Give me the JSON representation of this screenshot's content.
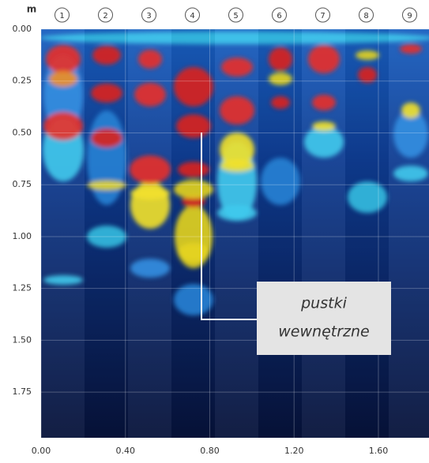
{
  "chart_data": {
    "type": "heatmap",
    "y_unit": "m",
    "categories": [
      "1",
      "2",
      "3",
      "4",
      "5",
      "6",
      "7",
      "8",
      "9"
    ],
    "xlim": [
      0,
      1.84
    ],
    "ylim": [
      0,
      1.97
    ],
    "xticks": [
      {
        "value": 0,
        "label": "0.00"
      },
      {
        "value": 0.4,
        "label": "0.40"
      },
      {
        "value": 0.8,
        "label": "0.80"
      },
      {
        "value": 1.2,
        "label": "1.20"
      },
      {
        "value": 1.6,
        "label": "1.60"
      }
    ],
    "yticks": [
      {
        "value": 0,
        "label": "0.00"
      },
      {
        "value": 0.25,
        "label": "0.25"
      },
      {
        "value": 0.5,
        "label": "0.50"
      },
      {
        "value": 0.75,
        "label": "0.75"
      },
      {
        "value": 1,
        "label": "1.00"
      },
      {
        "value": 1.25,
        "label": "1.25"
      },
      {
        "value": 1.5,
        "label": "1.50"
      },
      {
        "value": 1.75,
        "label": "1.75"
      }
    ],
    "grid": true,
    "annotation": [
      "pustki",
      "wewnętrzne"
    ]
  }
}
